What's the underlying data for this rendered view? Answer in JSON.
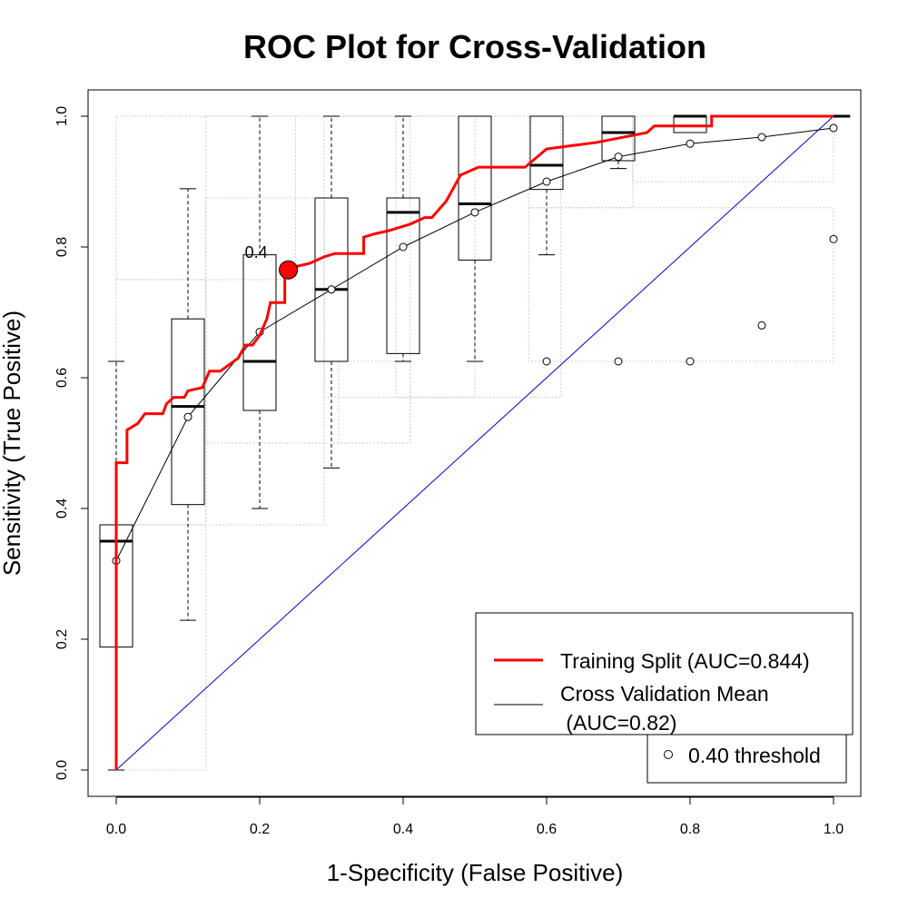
{
  "chart_data": {
    "type": "line",
    "title": "ROC Plot for Cross-Validation",
    "xlabel": "1-Specificity (False Positive)",
    "ylabel": "Sensitivity (True Positive)",
    "xlim": [
      0,
      1
    ],
    "ylim": [
      0,
      1
    ],
    "x_ticks": [
      "0.0",
      "0.2",
      "0.4",
      "0.6",
      "0.8",
      "1.0"
    ],
    "y_ticks": [
      "0.0",
      "0.2",
      "0.4",
      "0.6",
      "0.8",
      "1.0"
    ],
    "colors": {
      "training": "#ff0000",
      "cv_mean": "#000000",
      "diagonal": "#0000cc",
      "grid_rect": "#cccccc"
    },
    "training_split": {
      "name": "Training Split (AUC=0.844)",
      "points": [
        [
          0,
          0
        ],
        [
          0,
          0.47
        ],
        [
          0.015,
          0.47
        ],
        [
          0.015,
          0.52
        ],
        [
          0.03,
          0.53
        ],
        [
          0.04,
          0.545
        ],
        [
          0.065,
          0.545
        ],
        [
          0.07,
          0.56
        ],
        [
          0.08,
          0.57
        ],
        [
          0.095,
          0.57
        ],
        [
          0.1,
          0.58
        ],
        [
          0.12,
          0.585
        ],
        [
          0.13,
          0.61
        ],
        [
          0.145,
          0.61
        ],
        [
          0.17,
          0.63
        ],
        [
          0.18,
          0.65
        ],
        [
          0.19,
          0.65
        ],
        [
          0.2,
          0.665
        ],
        [
          0.21,
          0.69
        ],
        [
          0.215,
          0.715
        ],
        [
          0.235,
          0.715
        ],
        [
          0.235,
          0.765
        ],
        [
          0.25,
          0.77
        ],
        [
          0.27,
          0.775
        ],
        [
          0.29,
          0.785
        ],
        [
          0.305,
          0.79
        ],
        [
          0.345,
          0.79
        ],
        [
          0.345,
          0.815
        ],
        [
          0.36,
          0.82
        ],
        [
          0.38,
          0.825
        ],
        [
          0.41,
          0.835
        ],
        [
          0.43,
          0.845
        ],
        [
          0.44,
          0.845
        ],
        [
          0.46,
          0.87
        ],
        [
          0.47,
          0.89
        ],
        [
          0.48,
          0.91
        ],
        [
          0.505,
          0.922
        ],
        [
          0.57,
          0.922
        ],
        [
          0.6,
          0.95
        ],
        [
          0.67,
          0.96
        ],
        [
          0.74,
          0.975
        ],
        [
          0.75,
          0.985
        ],
        [
          0.8,
          0.985
        ],
        [
          0.83,
          0.985
        ],
        [
          0.83,
          1
        ],
        [
          1,
          1
        ]
      ]
    },
    "cv_mean": {
      "name": "Cross Validation Mean",
      "auc_line": "(AUC=0.82)",
      "points": [
        [
          0,
          0.32
        ],
        [
          0.1,
          0.54
        ],
        [
          0.2,
          0.67
        ],
        [
          0.3,
          0.735
        ],
        [
          0.4,
          0.8
        ],
        [
          0.5,
          0.853
        ],
        [
          0.6,
          0.9
        ],
        [
          0.7,
          0.938
        ],
        [
          0.8,
          0.958
        ],
        [
          0.9,
          0.968
        ],
        [
          1.0,
          0.982
        ]
      ]
    },
    "threshold": {
      "label": "0.4",
      "point": [
        0.24,
        0.765
      ]
    },
    "boxplots": [
      {
        "x": 0.0,
        "wlo": 0.0,
        "q1": 0.188,
        "median": 0.35,
        "q3": 0.375,
        "whi": 0.625,
        "outliers": []
      },
      {
        "x": 0.1,
        "wlo": 0.229,
        "q1": 0.406,
        "median": 0.556,
        "q3": 0.69,
        "whi": 0.889,
        "outliers": []
      },
      {
        "x": 0.2,
        "wlo": 0.4,
        "q1": 0.55,
        "median": 0.625,
        "q3": 0.788,
        "whi": 1.0,
        "outliers": []
      },
      {
        "x": 0.3,
        "wlo": 0.462,
        "q1": 0.625,
        "median": 0.735,
        "q3": 0.875,
        "whi": 1.0,
        "outliers": []
      },
      {
        "x": 0.4,
        "wlo": 0.625,
        "q1": 0.637,
        "median": 0.853,
        "q3": 0.875,
        "whi": 1.0,
        "outliers": []
      },
      {
        "x": 0.5,
        "wlo": 0.625,
        "q1": 0.78,
        "median": 0.866,
        "q3": 1.0,
        "whi": 1.0,
        "outliers": []
      },
      {
        "x": 0.6,
        "wlo": 0.788,
        "q1": 0.888,
        "median": 0.925,
        "q3": 1.0,
        "whi": 1.0,
        "outliers": [
          0.625
        ]
      },
      {
        "x": 0.7,
        "wlo": 0.92,
        "q1": 0.932,
        "median": 0.975,
        "q3": 1.0,
        "whi": 1.0,
        "outliers": [
          0.625
        ]
      },
      {
        "x": 0.8,
        "wlo": 0.975,
        "q1": 0.975,
        "median": 1.0,
        "q3": 1.0,
        "whi": 1.0,
        "outliers": [
          0.625
        ]
      },
      {
        "x": 0.9,
        "wlo": 1.0,
        "q1": 1.0,
        "median": 1.0,
        "q3": 1.0,
        "whi": 1.0,
        "outliers": [
          0.68
        ]
      },
      {
        "x": 1.0,
        "wlo": 1.0,
        "q1": 1.0,
        "median": 1.0,
        "q3": 1.0,
        "whi": 1.0,
        "outliers": [
          0.812
        ]
      }
    ],
    "background_rects": [
      [
        0,
        0,
        0.125,
        0.375
      ],
      [
        0,
        0.375,
        0.125,
        0.75
      ],
      [
        0,
        0.75,
        0.25,
        1.0
      ],
      [
        0.125,
        0.375,
        0.29,
        0.875
      ],
      [
        0.125,
        0.5,
        0.41,
        1.0
      ],
      [
        0.29,
        0.57,
        0.5,
        1.0
      ],
      [
        0.31,
        0.5,
        0.41,
        0.625
      ],
      [
        0.39,
        0.57,
        0.62,
        1.0
      ],
      [
        0.575,
        0.625,
        1.0,
        0.86
      ],
      [
        0.575,
        0.86,
        0.72,
        1.0
      ],
      [
        0.72,
        0.9,
        1.0,
        1.0
      ]
    ],
    "legend": {
      "training_label": "Training Split (AUC=0.844)",
      "cv_label_line1": "Cross Validation Mean",
      "cv_label_line2": " (AUC=0.82)",
      "threshold_label": "0.40 threshold"
    },
    "legend_position": "bottom-right",
    "grid": false
  }
}
